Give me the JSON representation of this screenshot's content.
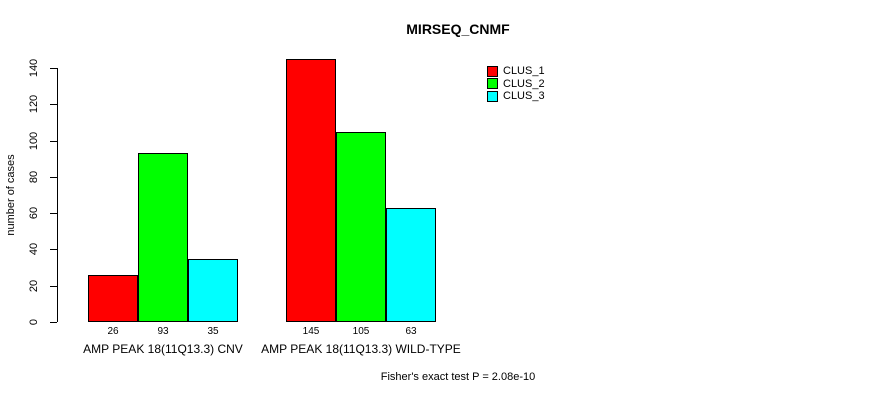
{
  "chart_data": {
    "type": "bar",
    "title": "MIRSEQ_CNMF",
    "xlabel": "",
    "ylabel": "number of cases",
    "ylim": [
      0,
      140
    ],
    "yticks": [
      0,
      20,
      40,
      60,
      80,
      100,
      120,
      140
    ],
    "grid": false,
    "bar_orientation": "vertical-grouped",
    "show_bar_values": true,
    "categories": [
      "AMP PEAK 18(11Q13.3) CNV",
      "AMP PEAK 18(11Q13.3) WILD-TYPE"
    ],
    "series": [
      {
        "name": "CLUS_1",
        "color": "#ff0000",
        "values": [
          26,
          145
        ]
      },
      {
        "name": "CLUS_2",
        "color": "#00ff00",
        "values": [
          93,
          105
        ]
      },
      {
        "name": "CLUS_3",
        "color": "#00ffff",
        "values": [
          35,
          63
        ]
      }
    ],
    "legend": {
      "position": "top-right"
    },
    "annotation": "Fisher's exact test P = 2.08e-10"
  },
  "style": {
    "background": "#ffffff",
    "axis_color": "#000000",
    "bar_border_color": "#000000",
    "text_color": "#000000"
  }
}
